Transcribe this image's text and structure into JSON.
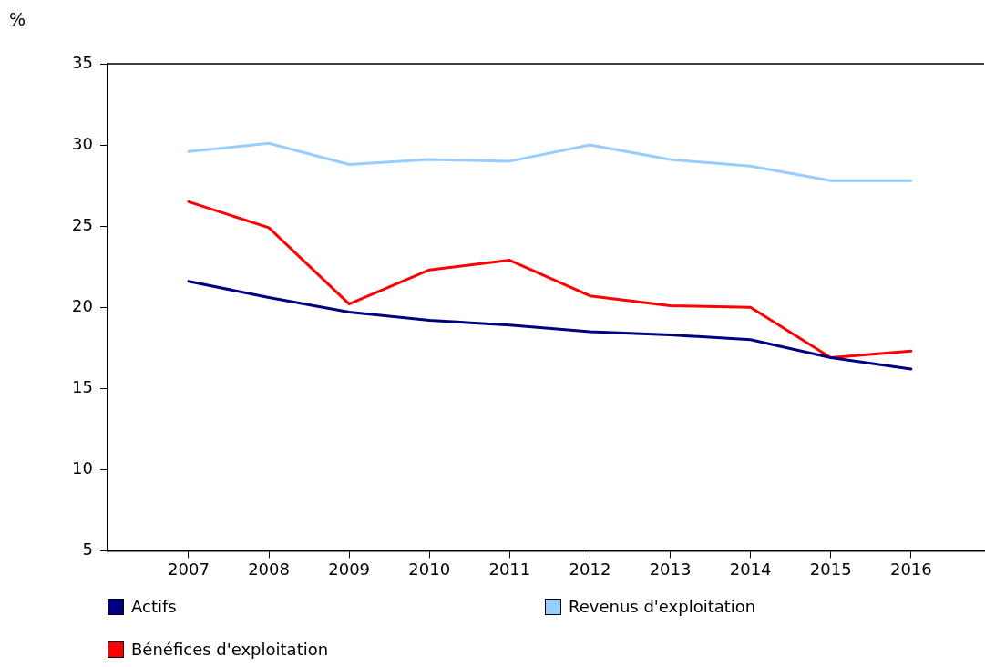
{
  "chart_data": {
    "type": "line",
    "ylabel": "%",
    "categories": [
      "2007",
      "2008",
      "2009",
      "2010",
      "2011",
      "2012",
      "2013",
      "2014",
      "2015",
      "2016"
    ],
    "series": [
      {
        "name": "Actifs",
        "color": "#000080",
        "values": [
          21.6,
          20.6,
          19.7,
          19.2,
          18.9,
          18.5,
          18.3,
          18.0,
          16.9,
          16.2
        ]
      },
      {
        "name": "Revenus d'exploitation",
        "color": "#99ccff",
        "values": [
          29.6,
          30.1,
          28.8,
          29.1,
          29.0,
          30.0,
          29.1,
          28.7,
          27.8,
          27.8
        ]
      },
      {
        "name": "Bénéfices d'exploitation",
        "color": "#ff0000",
        "values": [
          26.5,
          24.9,
          20.2,
          22.3,
          22.9,
          20.7,
          20.1,
          20.0,
          16.9,
          17.3
        ]
      }
    ],
    "ylim": [
      5,
      35
    ],
    "yticks": [
      5,
      10,
      15,
      20,
      25,
      30,
      35
    ],
    "grid": false,
    "legend": "bottom",
    "marker": "none",
    "line_style": "solid"
  }
}
